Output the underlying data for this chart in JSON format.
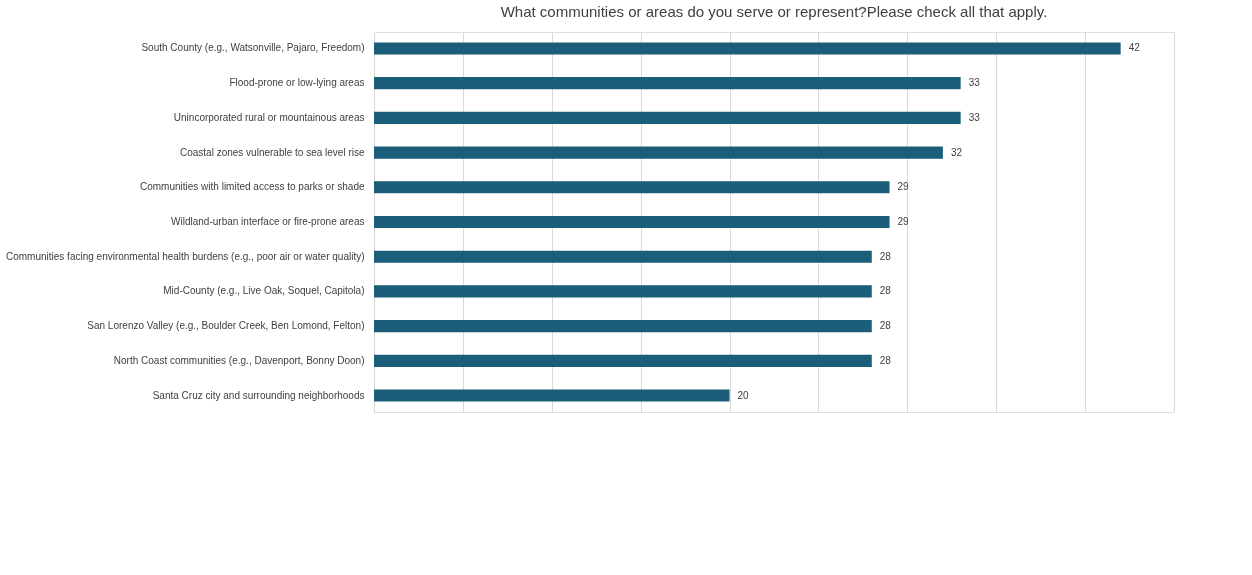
{
  "chart_data": {
    "type": "bar",
    "orientation": "horizontal",
    "title": "What communities or areas do you serve or represent?Please check all that apply.",
    "categories": [
      "South County (e.g., Watsonville, Pajaro, Freedom)",
      "Flood-prone or low-lying areas",
      "Unincorporated rural or mountainous areas",
      "Coastal zones vulnerable to sea level rise",
      "Communities with limited access to parks or shade",
      "Wildland-urban interface or fire-prone areas",
      "Communities facing environmental health burdens (e.g., poor air or water quality)",
      "Mid-County (e.g., Live Oak, Soquel, Capitola)",
      "San Lorenzo Valley (e.g., Boulder Creek, Ben Lomond, Felton)",
      "North Coast communities (e.g., Davenport, Bonny Doon)",
      "Santa Cruz city and surrounding neighborhoods"
    ],
    "values": [
      42,
      33,
      33,
      32,
      29,
      29,
      28,
      28,
      28,
      28,
      20
    ],
    "color": "#1b5e79",
    "data_labels": true,
    "xlim": [
      0,
      45
    ],
    "xticks": [
      {
        "value": 0,
        "label": null
      },
      {
        "value": 5,
        "label": null
      },
      {
        "value": 10,
        "label": null
      },
      {
        "value": 15,
        "label": null
      },
      {
        "value": 20,
        "label": null
      },
      {
        "value": 25,
        "label": null
      },
      {
        "value": 30,
        "label": null
      },
      {
        "value": 35,
        "label": null
      },
      {
        "value": 40,
        "label": null
      },
      {
        "value": 45,
        "label": null
      }
    ],
    "grid": "x",
    "tick_labels": "y"
  }
}
